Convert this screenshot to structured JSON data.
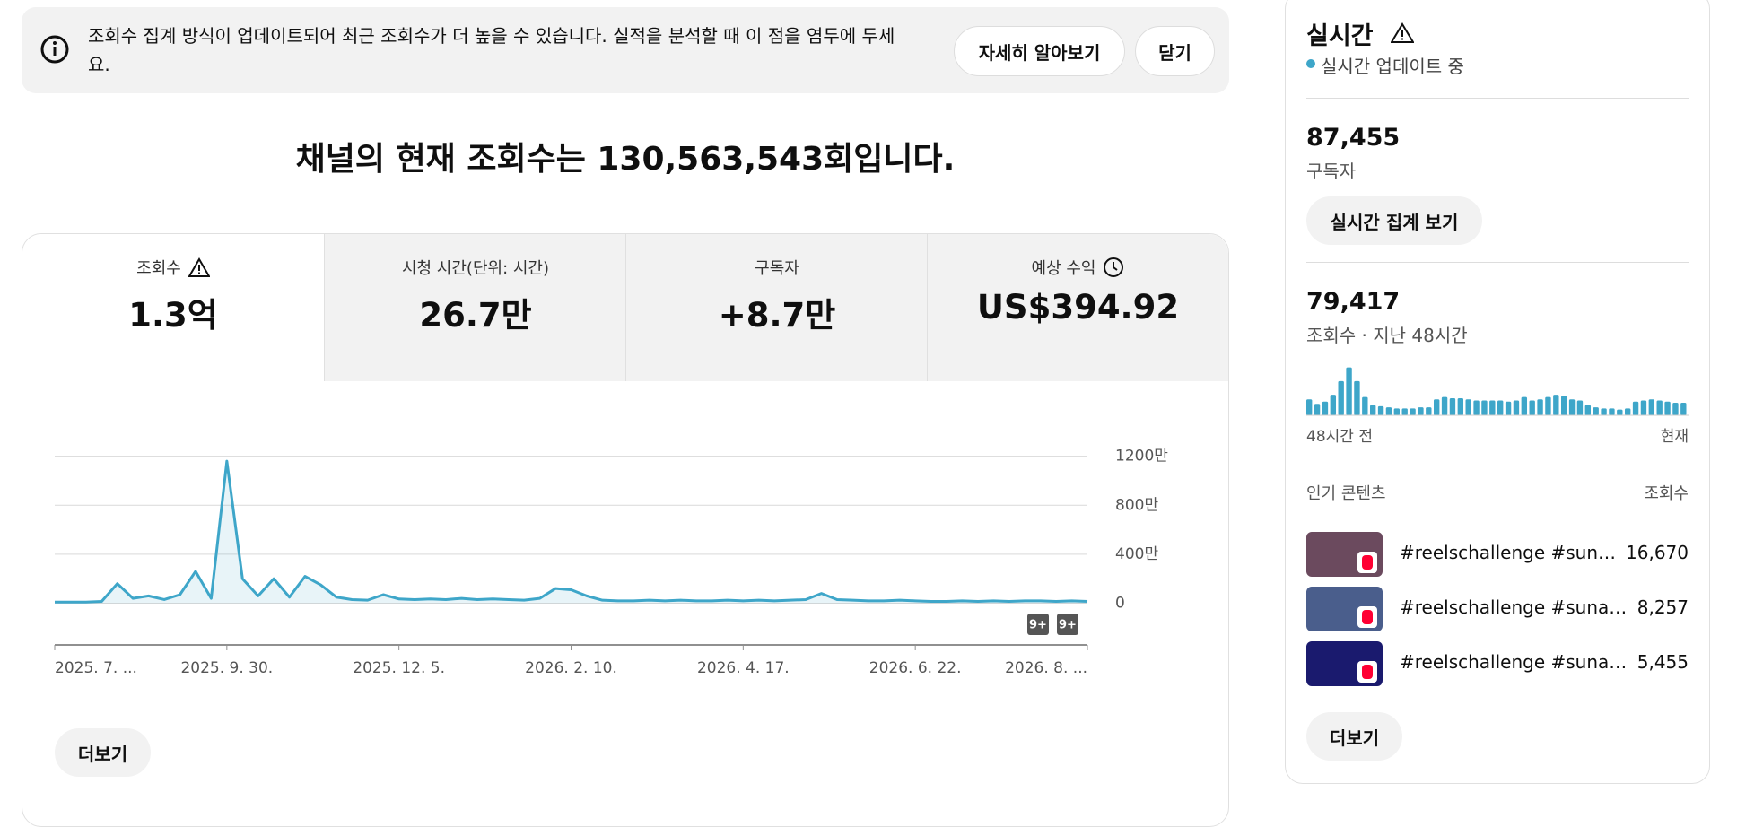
{
  "banner": {
    "text": "조회수 집계 방식이 업데이트되어 최근 조회수가 더 높을 수 있습니다. 실적을 분석할 때 이 점을 염두에 두세요.",
    "learn_more": "자세히 알아보기",
    "close": "닫기"
  },
  "headline": "채널의 현재 조회수는 130,563,543회입니다.",
  "metrics": [
    {
      "label": "조회수",
      "value": "1.3억"
    },
    {
      "label": "시청 시간(단위: 시간)",
      "value": "26.7만"
    },
    {
      "label": "구독자",
      "value": "+8.7만"
    },
    {
      "label": "예상 수익",
      "value": "US$394.92"
    }
  ],
  "more_button": "더보기",
  "chart_data": [
    {
      "type": "line",
      "color": "#3ea6c9",
      "grid": true,
      "categories": [
        "2025. 7. ...",
        null,
        null,
        null,
        null,
        null,
        null,
        null,
        null,
        null,
        null,
        "2025. 9. 30.",
        null,
        null,
        null,
        null,
        null,
        null,
        null,
        null,
        null,
        null,
        "2025. 12. 5.",
        null,
        null,
        null,
        null,
        null,
        null,
        null,
        null,
        null,
        null,
        "2026. 2. 10.",
        null,
        null,
        null,
        null,
        null,
        null,
        null,
        null,
        null,
        null,
        "2026. 4. 17.",
        null,
        null,
        null,
        null,
        null,
        null,
        null,
        null,
        null,
        null,
        "2026. 6. 22.",
        null,
        null,
        null,
        null,
        null,
        null,
        null,
        null,
        null,
        null,
        "2026. 8. ..."
      ],
      "values": [
        10,
        10,
        10,
        15,
        160,
        40,
        60,
        30,
        70,
        260,
        40,
        1160,
        200,
        60,
        200,
        50,
        220,
        150,
        50,
        30,
        25,
        70,
        35,
        30,
        35,
        30,
        40,
        30,
        35,
        30,
        25,
        40,
        120,
        110,
        60,
        25,
        20,
        20,
        25,
        20,
        25,
        20,
        20,
        25,
        20,
        25,
        20,
        25,
        30,
        80,
        30,
        25,
        20,
        20,
        25,
        20,
        15,
        15,
        20,
        15,
        20,
        15,
        20,
        20,
        15,
        20,
        15
      ],
      "ylim": [
        -340,
        1300
      ],
      "yticks": [
        0,
        {
          "value": 400,
          "label": "400만"
        },
        {
          "value": 800,
          "label": "800만"
        },
        {
          "value": 1200,
          "label": "1200만"
        }
      ],
      "annotations": [
        "9+",
        "9+"
      ]
    },
    {
      "type": "bar",
      "color": "#3ea6c9",
      "categories": [
        "48시간 전",
        null,
        null,
        null,
        null,
        null,
        null,
        null,
        null,
        null,
        null,
        null,
        null,
        null,
        null,
        null,
        null,
        null,
        null,
        null,
        null,
        null,
        null,
        null,
        null,
        null,
        null,
        null,
        null,
        null,
        null,
        null,
        null,
        null,
        null,
        null,
        null,
        null,
        null,
        null,
        null,
        null,
        null,
        null,
        null,
        null,
        null,
        "현재"
      ],
      "values": [
        1778,
        1270,
        1524,
        2286,
        3810,
        5334,
        3810,
        2032,
        1143,
        1016,
        889,
        762,
        762,
        762,
        889,
        889,
        1778,
        2032,
        1905,
        1905,
        1778,
        1651,
        1651,
        1651,
        1651,
        1524,
        1651,
        2032,
        1651,
        1778,
        2032,
        2286,
        2159,
        1778,
        1651,
        1143,
        889,
        762,
        762,
        635,
        762,
        1524,
        1651,
        1778,
        1651,
        1524,
        1397,
        1397
      ],
      "ylim": [
        0,
        5600
      ]
    }
  ],
  "realtime": {
    "title": "실시간",
    "status": "실시간 업데이트 중",
    "subscribers": "87,455",
    "subscribers_label": "구독자",
    "live_button": "실시간 집계 보기",
    "views": "79,417",
    "views_label": "조회수 · 지난 48시간",
    "top_content_label": "인기 콘텐츠",
    "views_column": "조회수",
    "top_content": [
      {
        "title": "#reelschallenge #sun…",
        "views": "16,670"
      },
      {
        "title": "#reelschallenge #suna…",
        "views": "8,257"
      },
      {
        "title": "#reelschallenge #suna…",
        "views": "5,455"
      }
    ],
    "more_button": "더보기"
  }
}
